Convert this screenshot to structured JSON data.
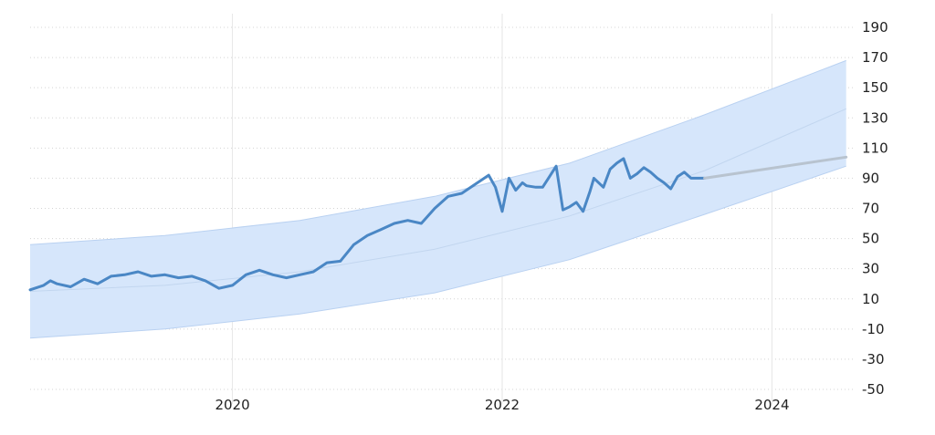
{
  "chart_data": {
    "type": "line",
    "title": "",
    "xlabel": "",
    "ylabel": "",
    "xlim": [
      2018.5,
      2024.62
    ],
    "ylim": [
      -50,
      200
    ],
    "x_ticks": [
      2020,
      2022,
      2024
    ],
    "x_tick_labels": [
      "2020",
      "2022",
      "2024"
    ],
    "y_ticks": [
      190,
      170,
      150,
      130,
      110,
      90,
      70,
      50,
      30,
      10,
      -10,
      -30,
      -50
    ],
    "y_tick_labels": [
      "190",
      "170",
      "150",
      "130",
      "110",
      "90",
      "70",
      "50",
      "30",
      "10",
      "-10",
      "-30",
      "-50"
    ],
    "grid": true,
    "legend": "none",
    "colors": {
      "series": "#4a87c5",
      "forecast": "#b8c3cf",
      "band_fill": "#d6e6fb",
      "band_edge": "#b9d1f1",
      "trend": "#c2d6ef"
    },
    "series": [
      {
        "x": [
          2018.5,
          2018.6,
          2018.65,
          2018.7,
          2018.8,
          2018.9,
          2019.0,
          2019.1,
          2019.2,
          2019.3,
          2019.4,
          2019.5,
          2019.6,
          2019.7,
          2019.8,
          2019.9,
          2020.0,
          2020.1,
          2020.2,
          2020.3,
          2020.4,
          2020.5,
          2020.6,
          2020.7,
          2020.8,
          2020.9,
          2021.0,
          2021.1,
          2021.2,
          2021.3,
          2021.4,
          2021.5,
          2021.6,
          2021.7,
          2021.8,
          2021.9,
          2021.95,
          2022.0,
          2022.05,
          2022.1,
          2022.15,
          2022.18,
          2022.25,
          2022.3,
          2022.35,
          2022.4,
          2022.45,
          2022.5,
          2022.55,
          2022.6,
          2022.65,
          2022.68,
          2022.75,
          2022.8,
          2022.85,
          2022.9,
          2022.95,
          2023.0,
          2023.05,
          2023.1,
          2023.15,
          2023.2,
          2023.25,
          2023.3,
          2023.35,
          2023.4,
          2023.45,
          2023.5
        ],
        "values": [
          16,
          19,
          22,
          20,
          18,
          23,
          20,
          25,
          26,
          28,
          25,
          26,
          24,
          25,
          22,
          17,
          19,
          26,
          29,
          26,
          24,
          26,
          28,
          34,
          35,
          46,
          52,
          56,
          60,
          62,
          60,
          70,
          78,
          80,
          86,
          92,
          84,
          68,
          90,
          82,
          87,
          85,
          84,
          84,
          91,
          98,
          69,
          71,
          74,
          68,
          81,
          90,
          84,
          96,
          100,
          103,
          90,
          93,
          97,
          94,
          90,
          87,
          83,
          91,
          94,
          90,
          90,
          90
        ]
      },
      {
        "x": [
          2023.5,
          2024.55
        ],
        "values": [
          90,
          104
        ]
      }
    ],
    "trend": {
      "x": [
        2018.5,
        2019.5,
        2020.5,
        2021.5,
        2022.5,
        2023.5,
        2024.55
      ],
      "values": [
        15,
        19,
        28,
        43,
        65,
        95,
        136
      ]
    },
    "band": {
      "x": [
        2018.5,
        2019.5,
        2020.5,
        2021.5,
        2022.5,
        2023.5,
        2024.55
      ],
      "upper": [
        46,
        52,
        62,
        78,
        100,
        132,
        168
      ],
      "lower": [
        -16,
        -10,
        0,
        14,
        36,
        66,
        98
      ]
    }
  }
}
